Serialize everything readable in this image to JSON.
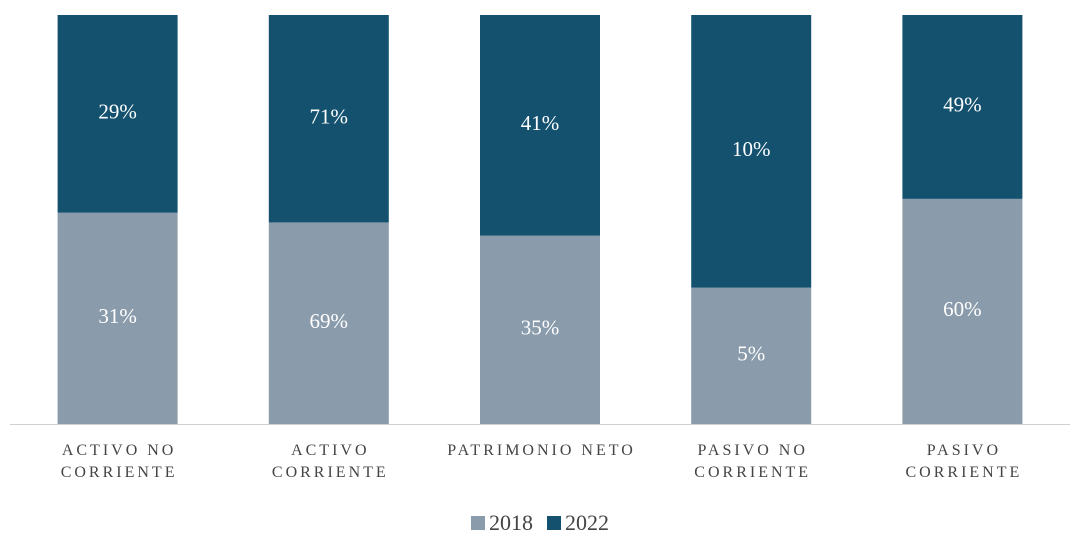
{
  "chart_data": {
    "type": "stacked_percent_bar",
    "categories": [
      "ACTIVO NO CORRIENTE",
      "ACTIVO CORRIENTE",
      "PATRIMONIO NETO",
      "PASIVO NO CORRIENTE",
      "PASIVO CORRIENTE"
    ],
    "series": [
      {
        "name": "2018",
        "color": "#8a9bab",
        "values": [
          31,
          69,
          35,
          5,
          60
        ],
        "value_labels": [
          "31%",
          "69%",
          "35%",
          "5%",
          "60%"
        ]
      },
      {
        "name": "2022",
        "color": "#13516f",
        "values": [
          29,
          71,
          41,
          10,
          49
        ],
        "value_labels": [
          "29%",
          "71%",
          "41%",
          "10%",
          "49%"
        ]
      }
    ],
    "legend": "bottom"
  }
}
